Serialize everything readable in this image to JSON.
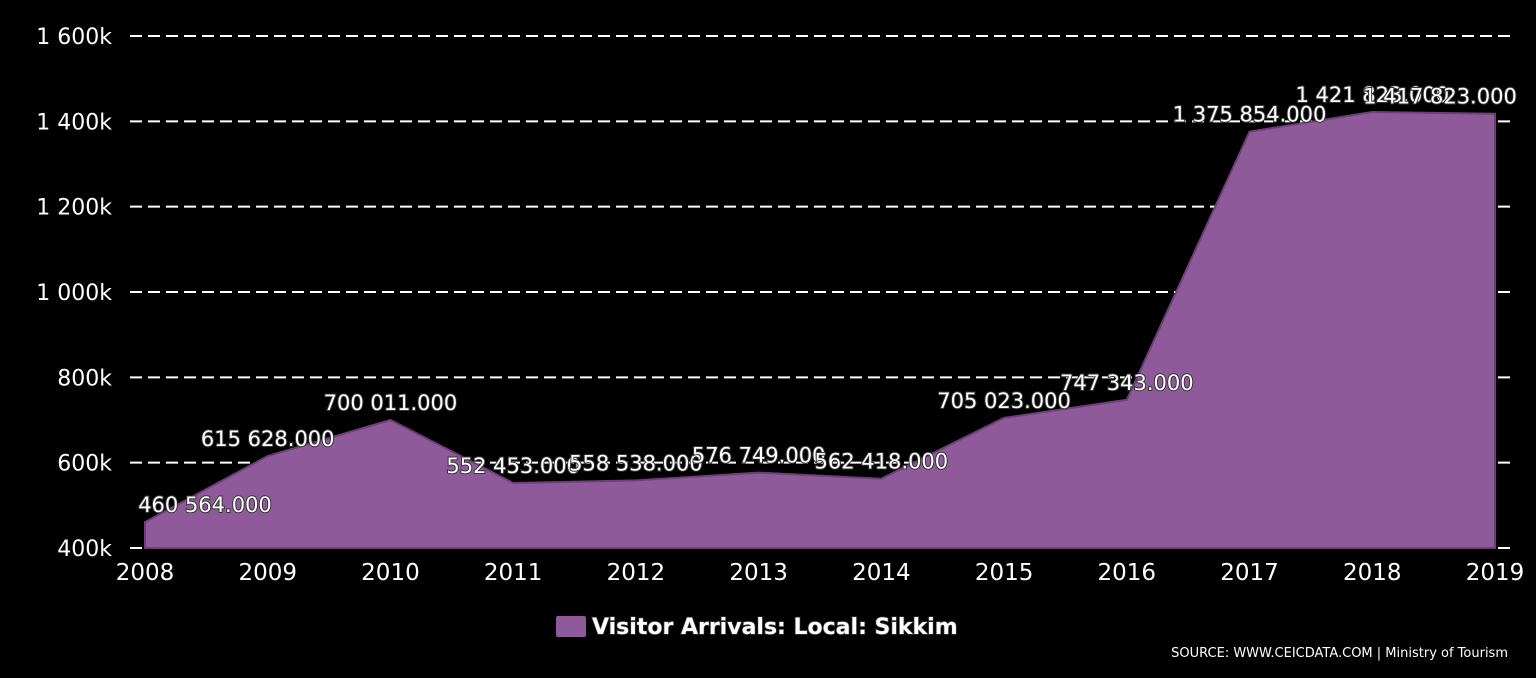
{
  "chart_data": {
    "type": "area",
    "x": [
      "2008",
      "2009",
      "2010",
      "2011",
      "2012",
      "2013",
      "2014",
      "2015",
      "2016",
      "2017",
      "2018",
      "2019"
    ],
    "series": [
      {
        "name": "Visitor Arrivals: Local: Sikkim",
        "values": [
          460564,
          615628,
          700011,
          552453,
          558538,
          576749,
          562418,
          705023,
          747343,
          1375854,
          1421823,
          1417823
        ],
        "labels": [
          "460 564.000",
          "615 628.000",
          "700 011.000",
          "552 453.000",
          "558 538.000",
          "576 749.000",
          "562 418.000",
          "705 023.000",
          "747 343.000",
          "1 375 854.000",
          "1 421 823.000",
          "1 417 823.000"
        ],
        "color": "#8f5a9a"
      }
    ],
    "yticks": [
      400000,
      600000,
      800000,
      1000000,
      1200000,
      1400000,
      1600000
    ],
    "ytick_labels": [
      "400k",
      "600k",
      "800k",
      "1 000k",
      "1 200k",
      "1 400k",
      "1 600k"
    ],
    "ylim": [
      400000,
      1600000
    ],
    "grid": true,
    "legend_position": "bottom-center",
    "source": "SOURCE: WWW.CEICDATA.COM | Ministry of Tourism"
  }
}
